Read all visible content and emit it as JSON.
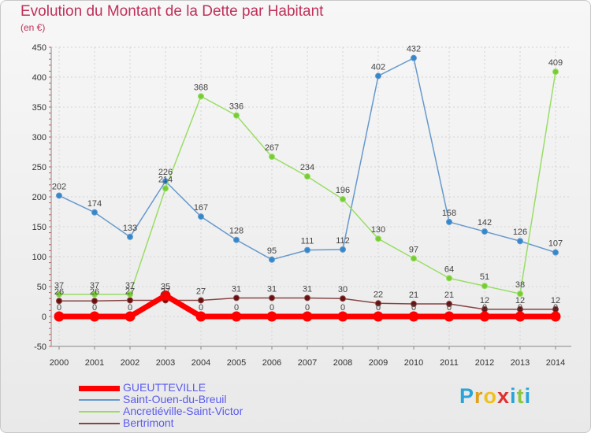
{
  "title": "Evolution du Montant de la Dette par Habitant",
  "subtitle": "(en €)",
  "logo": {
    "text": "Proxiti",
    "letters": [
      {
        "ch": "P",
        "color": "#2aa3d8"
      },
      {
        "ch": "r",
        "color": "#e0a018"
      },
      {
        "ch": "o",
        "color": "#f0c020"
      },
      {
        "ch": "x",
        "color": "#e03030"
      },
      {
        "ch": "i",
        "color": "#2aa3d8"
      },
      {
        "ch": "t",
        "color": "#8cc63f"
      },
      {
        "ch": "i",
        "color": "#2aa3d8"
      }
    ]
  },
  "chart_data": {
    "type": "line",
    "title": "Evolution du Montant de la Dette par Habitant",
    "subtitle": "(en €)",
    "xlabel": "",
    "ylabel": "",
    "ylim": [
      -50,
      450
    ],
    "yticks": [
      -50,
      0,
      50,
      100,
      150,
      200,
      250,
      300,
      350,
      400,
      450
    ],
    "grid": true,
    "legend_position": "bottom-left",
    "x": [
      2000,
      2001,
      2002,
      2003,
      2004,
      2005,
      2006,
      2007,
      2008,
      2009,
      2010,
      2011,
      2012,
      2013,
      2014
    ],
    "series": [
      {
        "name": "GUEUTTEVILLE",
        "color": "#ff0000",
        "values": [
          0,
          0,
          0,
          35,
          0,
          0,
          0,
          0,
          0,
          0,
          0,
          0,
          0,
          0,
          0
        ]
      },
      {
        "name": "Saint-Ouen-du-Breuil",
        "color": "#6699cc",
        "values": [
          202,
          174,
          133,
          226,
          167,
          128,
          95,
          111,
          112,
          402,
          432,
          158,
          142,
          126,
          107
        ]
      },
      {
        "name": "Ancretiéville-Saint-Victor",
        "color": "#99dd66",
        "values": [
          37,
          37,
          37,
          214,
          368,
          336,
          267,
          234,
          196,
          130,
          97,
          64,
          51,
          38,
          409
        ]
      },
      {
        "name": "Bertrimont",
        "color": "#884444",
        "values": [
          26,
          26,
          27,
          27,
          27,
          31,
          31,
          31,
          30,
          22,
          21,
          21,
          12,
          12,
          12
        ]
      }
    ]
  }
}
